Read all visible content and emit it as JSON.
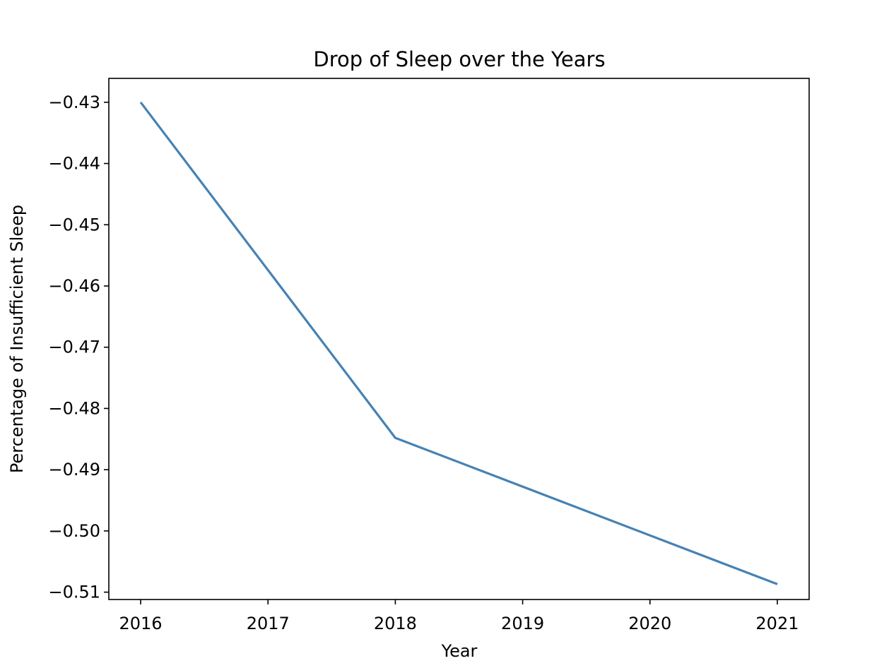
{
  "chart_data": {
    "type": "line",
    "title": "Drop of Sleep over the Years",
    "xlabel": "Year",
    "ylabel": "Percentage of Insufficient Sleep",
    "x": [
      2016,
      2018,
      2021
    ],
    "series": [
      {
        "values": [
          -0.43,
          -0.4848,
          -0.5087
        ],
        "color": "#4682b4"
      }
    ],
    "xticks": [
      "2016",
      "2017",
      "2018",
      "2019",
      "2020",
      "2021"
    ],
    "xtick_values": [
      2016,
      2017,
      2018,
      2019,
      2020,
      2021
    ],
    "yticks": [
      "−0.43",
      "−0.44",
      "−0.45",
      "−0.46",
      "−0.47",
      "−0.48",
      "−0.49",
      "−0.50",
      "−0.51"
    ],
    "ytick_values": [
      -0.43,
      -0.44,
      -0.45,
      -0.46,
      -0.47,
      -0.48,
      -0.49,
      -0.5,
      -0.51
    ],
    "xlim": [
      2015.75,
      2021.25
    ],
    "ylim": [
      -0.5112,
      -0.4261
    ],
    "grid": false,
    "legend": "none"
  }
}
